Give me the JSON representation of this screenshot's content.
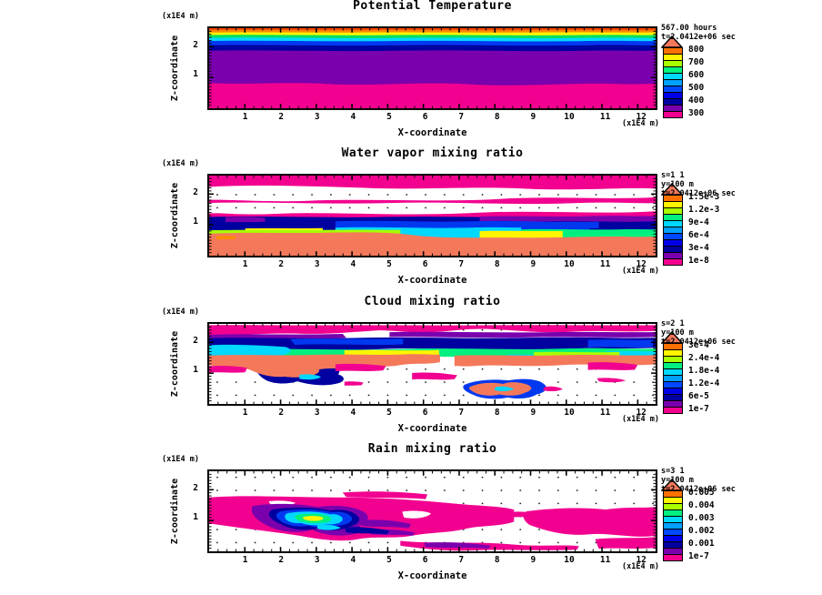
{
  "legend": {
    "pointer_color": "#F4795B",
    "colors": [
      "#FF7000",
      "#FFF500",
      "#A8FF00",
      "#00F080",
      "#00D8FF",
      "#00A0FF",
      "#0048FF",
      "#0000E8",
      "#0000A0",
      "#7A00AE",
      "#F2008F"
    ]
  },
  "panels": [
    {
      "title": "Potential Temperature",
      "ylabel": "Z-coordinate",
      "xlabel": "X-coordinate",
      "y_unit": "(x1E4 m)",
      "x_unit": "(x1E4 m)",
      "y_ticks": [
        "2",
        "1"
      ],
      "x_ticks": [
        "1",
        "2",
        "3",
        "4",
        "5",
        "6",
        "7",
        "8",
        "9",
        "10",
        "11",
        "12"
      ],
      "annotation_lines": [
        "567.00 hours",
        "t=2.0412e+06 sec"
      ],
      "legend_labels": [
        "800",
        "700",
        "600",
        "500",
        "400",
        "300"
      ]
    },
    {
      "title": "Water vapor mixing ratio",
      "ylabel": "Z-coordinate",
      "xlabel": "X-coordinate",
      "y_unit": "(x1E4 m)",
      "x_unit": "(x1E4 m)",
      "y_ticks": [
        "2",
        "1"
      ],
      "x_ticks": [
        "1",
        "2",
        "3",
        "4",
        "5",
        "6",
        "7",
        "8",
        "9",
        "10",
        "11",
        "12"
      ],
      "annotation_lines": [
        "s=1 1",
        "y=100 m",
        "t=2.0412e+06 sec"
      ],
      "legend_labels": [
        "1.5e-3",
        "1.2e-3",
        "9e-4",
        "6e-4",
        "3e-4",
        "1e-8"
      ]
    },
    {
      "title": "Cloud mixing ratio",
      "ylabel": "Z-coordinate",
      "xlabel": "X-coordinate",
      "y_unit": "(x1E4 m)",
      "x_unit": "(x1E4 m)",
      "y_ticks": [
        "2",
        "1"
      ],
      "x_ticks": [
        "1",
        "2",
        "3",
        "4",
        "5",
        "6",
        "7",
        "8",
        "9",
        "10",
        "11",
        "12"
      ],
      "annotation_lines": [
        "s=2 1",
        "y=100 m",
        "t=2.0412e+06 sec"
      ],
      "legend_labels": [
        "3e-4",
        "2.4e-4",
        "1.8e-4",
        "1.2e-4",
        "6e-5",
        "1e-7"
      ]
    },
    {
      "title": "Rain mixing ratio",
      "ylabel": "Z-coordinate",
      "xlabel": "X-coordinate",
      "y_unit": "(x1E4 m)",
      "x_unit": "(x1E4 m)",
      "y_ticks": [
        "2",
        "1"
      ],
      "x_ticks": [
        "1",
        "2",
        "3",
        "4",
        "5",
        "6",
        "7",
        "8",
        "9",
        "10",
        "11",
        "12"
      ],
      "annotation_lines": [
        "s=3 1",
        "y=100 m",
        "t=2.0412e+06 sec"
      ],
      "legend_labels": [
        "0.005",
        "0.004",
        "0.003",
        "0.002",
        "0.001",
        "1e-7"
      ]
    }
  ],
  "chart_data": [
    {
      "type": "heatmap",
      "title": "Potential Temperature",
      "xlabel": "X-coordinate",
      "ylabel": "Z-coordinate",
      "axis_units": "x1E4 m",
      "x_ticks": [
        1,
        2,
        3,
        4,
        5,
        6,
        7,
        8,
        9,
        10,
        11,
        12
      ],
      "y_ticks": [
        1,
        2
      ],
      "x_range": [
        0,
        12.4
      ],
      "y_range": [
        0,
        2.6
      ],
      "time_annotation": "567.00 hours, t=2.0412e+06 sec",
      "contour_levels_labeled": [
        800,
        700,
        600,
        500,
        400,
        300
      ],
      "palette_high_to_low": [
        "#FF7000",
        "#FFF500",
        "#A8FF00",
        "#00F080",
        "#00D8FF",
        "#00A0FF",
        "#0048FF",
        "#0000E8",
        "#0000A0",
        "#7A00AE",
        "#F2008F"
      ],
      "structure": "Horizontally stratified, increasing with height: lowest band (magenta, ~300) from surface to z~0.7; broad ~400-500 layer (purple/navy) z~0.7-1.9; thin 500-800 bands (blue, cyan, green, yellow, orange, red) stacked between z~1.9 and domain top."
    },
    {
      "type": "heatmap",
      "title": "Water vapor mixing ratio",
      "xlabel": "X-coordinate",
      "ylabel": "Z-coordinate",
      "axis_units": "x1E4 m",
      "x_ticks": [
        1,
        2,
        3,
        4,
        5,
        6,
        7,
        8,
        9,
        10,
        11,
        12
      ],
      "y_ticks": [
        1,
        2
      ],
      "x_range": [
        0,
        12.4
      ],
      "y_range": [
        0,
        2.6
      ],
      "slice_annotation": "s=1 1, y=100 m, t=2.0412e+06 sec",
      "contour_levels_labeled": [
        "1.5e-3",
        "1.2e-3",
        "9e-4",
        "6e-4",
        "3e-4",
        "1e-8"
      ],
      "structure": "Moist layer (salmon, highest values) below z~0.75 topped by a sharp yellow/green/cyan gradient; navy/blue band z~0.8-1.3 with purple patches; low values (magenta) aloft with dry white streaks (below minimum contour) around z~1.6-2.3."
    },
    {
      "type": "heatmap",
      "title": "Cloud mixing ratio",
      "xlabel": "X-coordinate",
      "ylabel": "Z-coordinate",
      "axis_units": "x1E4 m",
      "x_ticks": [
        1,
        2,
        3,
        4,
        5,
        6,
        7,
        8,
        9,
        10,
        11,
        12
      ],
      "y_ticks": [
        1,
        2
      ],
      "x_range": [
        0,
        12.4
      ],
      "y_range": [
        0,
        2.6
      ],
      "slice_annotation": "s=2 1, y=100 m, t=2.0412e+06 sec",
      "contour_levels_labeled": [
        "3e-4",
        "2.4e-4",
        "1.8e-4",
        "1.2e-4",
        "6e-5",
        "1e-7"
      ],
      "structure": "Cloud deck between z~1.3 and 2.3: maxima (salmon/yellow ~3e-4) in a wavy layer near z~1.5-1.8 beneath blue/navy/purple and a magenta cap; turbulent fragments near x~1-3; isolated low cloud blobs near x~7.5-9 at z~0.3-0.6; white = cloud-free."
    },
    {
      "type": "heatmap",
      "title": "Rain mixing ratio",
      "xlabel": "X-coordinate",
      "ylabel": "Z-coordinate",
      "axis_units": "x1E4 m",
      "x_ticks": [
        1,
        2,
        3,
        4,
        5,
        6,
        7,
        8,
        9,
        10,
        11,
        12
      ],
      "y_ticks": [
        1,
        2
      ],
      "x_range": [
        0,
        12.4
      ],
      "y_range": [
        0,
        2.6
      ],
      "slice_annotation": "s=3 1, y=100 m, t=2.0412e+06 sec",
      "contour_levels_labeled": [
        "0.005",
        "0.004",
        "0.003",
        "0.002",
        "0.001",
        "1e-7"
      ],
      "structure": "Widespread light rain (magenta ~0.001) in a layer around z~0.5-1.5 across most of the domain; intense rain core centered near x~2.5, z~1 with concentric purple-navy-blue-cyan-green-yellow maximum (~0.004-0.005); white = rain-free."
    }
  ]
}
